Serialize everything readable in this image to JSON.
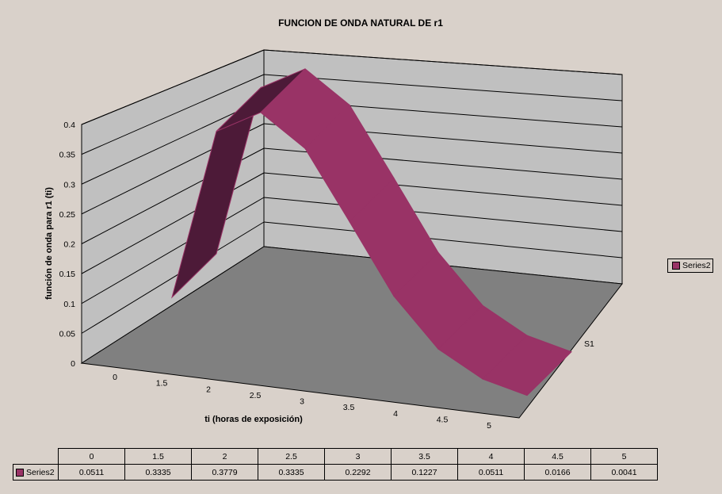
{
  "chart_data": {
    "type": "area",
    "title": "FUNCION DE ONDA NATURAL DE r1",
    "xlabel": "ti (horas de exposición)",
    "ylabel": "función de onda para r1 (ti)",
    "zlabel": "S1",
    "categories": [
      "0",
      "1.5",
      "2",
      "2.5",
      "3",
      "3.5",
      "4",
      "4.5",
      "5"
    ],
    "yticks": [
      "0",
      "0.05",
      "0.1",
      "0.15",
      "0.2",
      "0.25",
      "0.3",
      "0.35",
      "0.4"
    ],
    "ylim": [
      0,
      0.4
    ],
    "grid": true,
    "legend_position": "right",
    "series": [
      {
        "name": "Series2",
        "values": [
          0.0511,
          0.3335,
          0.3779,
          0.3335,
          0.2292,
          0.1227,
          0.0511,
          0.0166,
          0.0041
        ],
        "display_values": [
          "0.0511",
          "0.3335",
          "0.3779",
          "0.3335",
          "0.2292",
          "0.1227",
          "0.0511",
          "0.0166",
          "0.0041"
        ],
        "color": "#993366"
      }
    ]
  }
}
